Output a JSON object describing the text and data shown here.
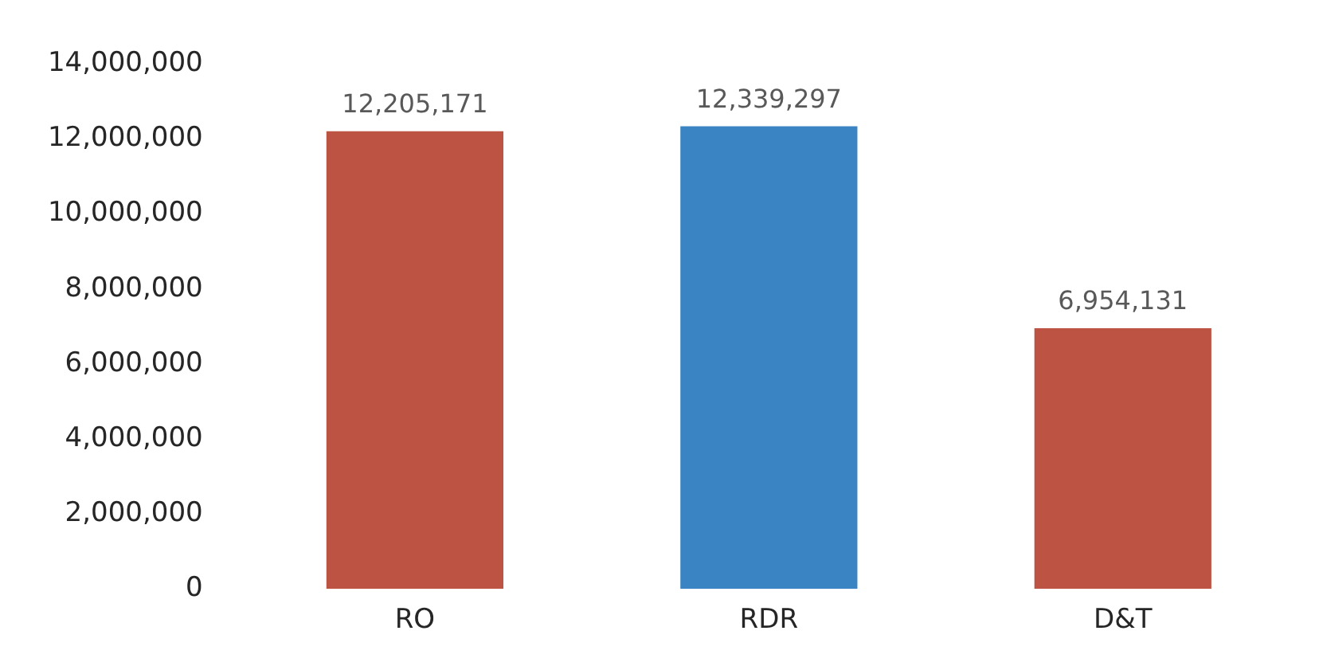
{
  "chart_data": {
    "type": "bar",
    "categories": [
      "RO",
      "RDR",
      "D&T"
    ],
    "values": [
      12205171,
      12339297,
      6954131
    ],
    "value_labels": [
      "12,205,171",
      "12,339,297",
      "6,954,131"
    ],
    "colors": [
      "#bd5443",
      "#3a84c4",
      "#bd5443"
    ],
    "ylim": [
      0,
      14000000
    ],
    "yticks": [
      0,
      {
        "value": 2000000,
        "label": "2,000,000"
      },
      {
        "value": 4000000,
        "label": "4,000,000"
      },
      {
        "value": 6000000,
        "label": "6,000,000"
      },
      {
        "value": 8000000,
        "label": "8,000,000"
      },
      {
        "value": 10000000,
        "label": "10,000,000"
      },
      {
        "value": 12000000,
        "label": "12,000,000"
      },
      {
        "value": 14000000,
        "label": "14,000,000"
      }
    ],
    "grid": false,
    "legend": false
  }
}
